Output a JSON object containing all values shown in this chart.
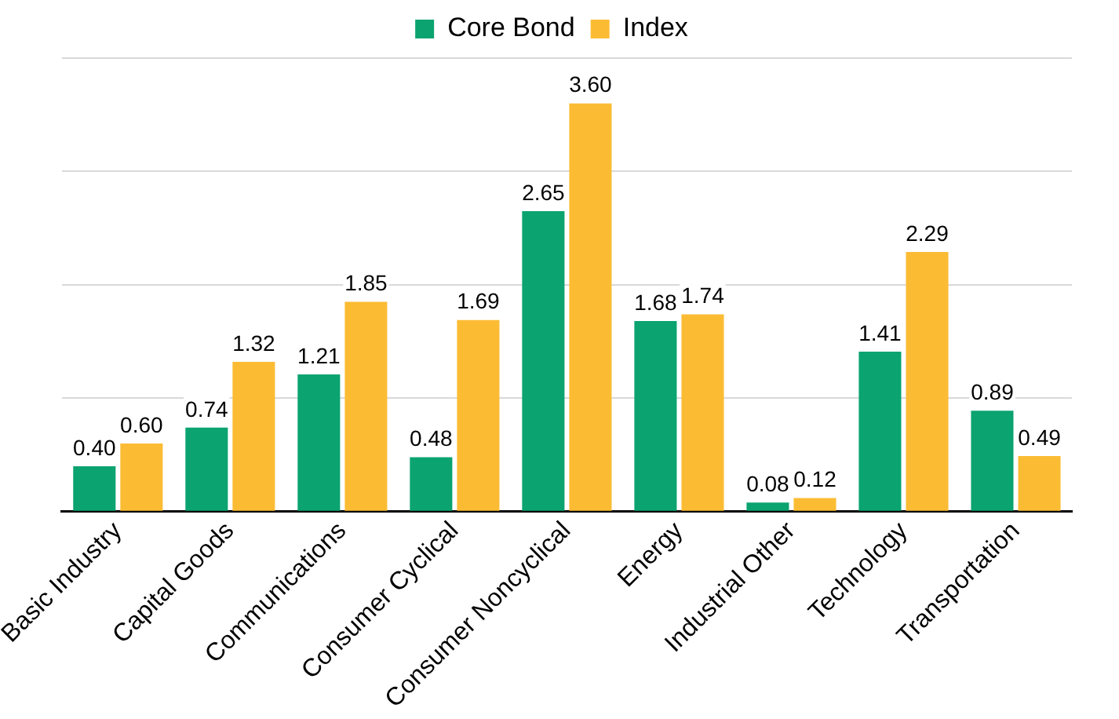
{
  "chart_data": {
    "type": "bar",
    "categories": [
      "Basic Industry",
      "Capital Goods",
      "Communications",
      "Consumer Cyclical",
      "Consumer Noncyclical",
      "Energy",
      "Industrial Other",
      "Technology",
      "Transportation"
    ],
    "series": [
      {
        "name": "Core Bond",
        "color": "#0ba370",
        "values": [
          0.4,
          0.74,
          1.21,
          0.48,
          2.65,
          1.68,
          0.08,
          1.41,
          0.89
        ],
        "value_labels": [
          "0.40",
          "0.74",
          "1.21",
          "0.48",
          "2.65",
          "1.68",
          "0.08",
          "1.41",
          "0.89"
        ]
      },
      {
        "name": "Index",
        "color": "#fbbc34",
        "values": [
          0.6,
          1.32,
          1.85,
          1.69,
          3.6,
          1.74,
          0.12,
          2.29,
          0.49
        ],
        "value_labels": [
          "0.60",
          "1.32",
          "1.85",
          "1.69",
          "3.60",
          "1.74",
          "0.12",
          "2.29",
          "0.49"
        ]
      }
    ],
    "ylim": [
      0,
      4
    ],
    "yticks": [
      {
        "value": 0,
        "label": null
      },
      {
        "value": 1,
        "label": null
      },
      {
        "value": 2,
        "label": null
      },
      {
        "value": 3,
        "label": null
      },
      {
        "value": 4,
        "label": null
      }
    ],
    "grid": "y",
    "legend": "top",
    "tick_labels": "x"
  }
}
